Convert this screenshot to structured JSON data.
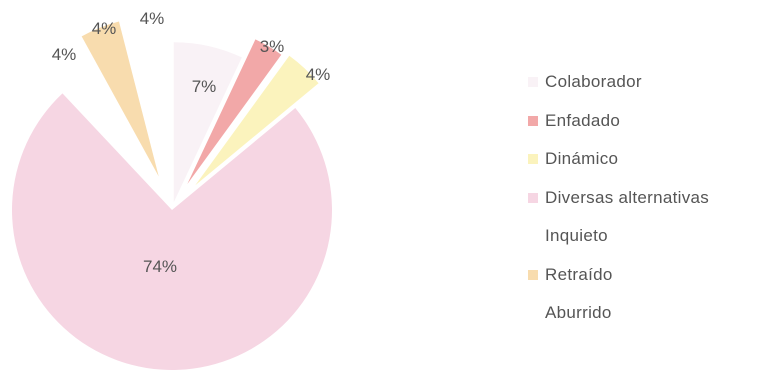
{
  "chart_data": {
    "type": "pie",
    "title": "",
    "exploded": true,
    "start": "top, clockwise",
    "slices": [
      {
        "label": "Colaborador",
        "value": 7,
        "value_label": "7%",
        "color": "#f9f2f6"
      },
      {
        "label": "Enfadado",
        "value": 3,
        "value_label": "3%",
        "color": "#f2a8a8"
      },
      {
        "label": "Dinámico",
        "value": 4,
        "value_label": "4%",
        "color": "#fbf3bd"
      },
      {
        "label": "Diversas alternativas",
        "value": 74,
        "value_label": "74%",
        "color": "#f6d6e3"
      },
      {
        "label": "Inquieto",
        "value": 4,
        "value_label": "4%",
        "color": "#ffffff"
      },
      {
        "label": "Retraído",
        "value": 4,
        "value_label": "4%",
        "color": "#f8dcae"
      },
      {
        "label": "Aburrido",
        "value": 4,
        "value_label": "4%",
        "color": "#ffffff"
      }
    ],
    "legend_position": "right"
  }
}
